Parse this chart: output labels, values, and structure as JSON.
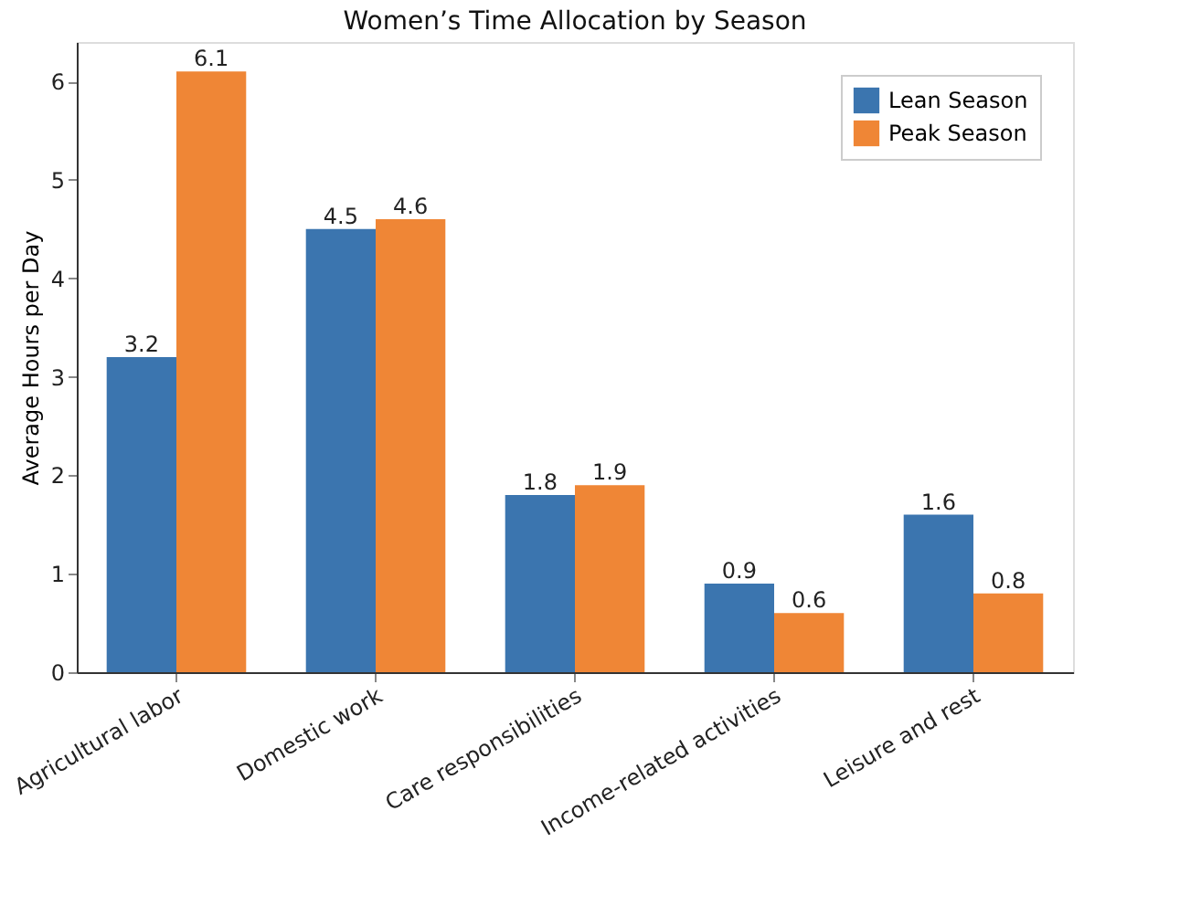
{
  "chart_data": {
    "type": "bar",
    "title": "Women’s Time Allocation by Season",
    "ylabel": "Average Hours per Day",
    "categories": [
      "Agricultural labor",
      "Domestic work",
      "Care responsibilities",
      "Income-related activities",
      "Leisure and rest"
    ],
    "series": [
      {
        "name": "Lean Season",
        "color": "#3b75af",
        "values": [
          3.2,
          4.5,
          1.8,
          0.9,
          1.6
        ]
      },
      {
        "name": "Peak Season",
        "color": "#ef8636",
        "values": [
          6.1,
          4.6,
          1.9,
          0.6,
          0.8
        ]
      }
    ],
    "ylim": [
      0,
      6.4
    ],
    "yticks": [
      0,
      1,
      2,
      3,
      4,
      5,
      6
    ],
    "data_labels": true,
    "legend": "top right",
    "grid": false
  }
}
